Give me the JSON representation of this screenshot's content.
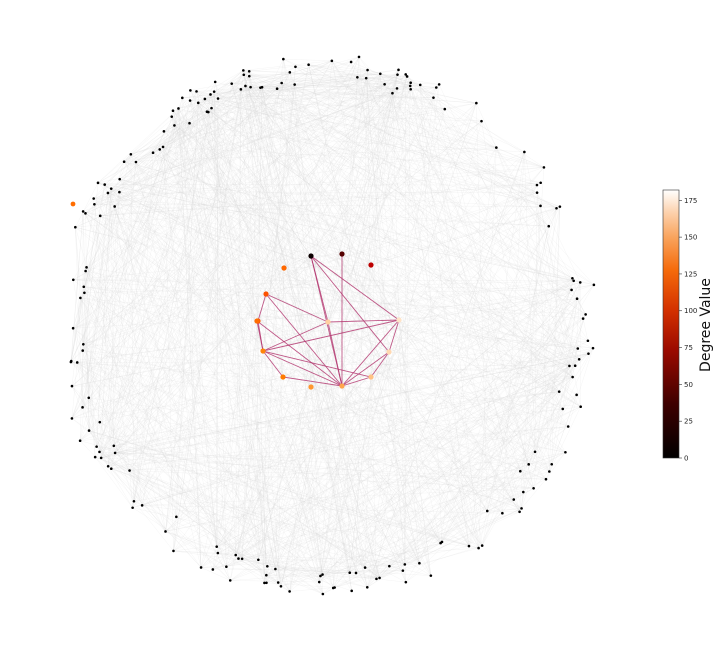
{
  "colorbar": {
    "label": "Degree Value",
    "min": 0,
    "max": 182,
    "ticks": [
      "0",
      "25",
      "50",
      "75",
      "100",
      "125",
      "150",
      "175"
    ],
    "tick_values": [
      0,
      25,
      50,
      75,
      100,
      125,
      150,
      175
    ],
    "colormap": "gist_heat"
  },
  "colors": {
    "background_edge": "#d8d8d8",
    "highlight_edge": "#b0306a",
    "outer_node": "#000000"
  },
  "graph": {
    "outer_node_count": 200,
    "background_edge_count": 1300,
    "inner_nodes": [
      {
        "id": "n1",
        "degree": 90
      },
      {
        "id": "n2",
        "degree": 40
      },
      {
        "id": "n3",
        "degree": 5
      },
      {
        "id": "n4",
        "degree": 128
      },
      {
        "id": "n5",
        "degree": 120
      },
      {
        "id": "n6",
        "degree": 122
      },
      {
        "id": "n7",
        "degree": 165
      },
      {
        "id": "n8",
        "degree": 172
      },
      {
        "id": "n9",
        "degree": 168
      },
      {
        "id": "n10",
        "degree": 160
      },
      {
        "id": "n11",
        "degree": 150
      },
      {
        "id": "n12",
        "degree": 145
      },
      {
        "id": "n13",
        "degree": 135
      },
      {
        "id": "n14",
        "degree": 138
      },
      {
        "id": "n15",
        "degree": 130
      }
    ],
    "highlight_edges": [
      [
        "n2",
        "n11"
      ],
      [
        "n3",
        "n7"
      ],
      [
        "n3",
        "n9"
      ],
      [
        "n3",
        "n11"
      ],
      [
        "n3",
        "n8"
      ],
      [
        "n5",
        "n7"
      ],
      [
        "n5",
        "n11"
      ],
      [
        "n5",
        "n6"
      ],
      [
        "n6",
        "n14"
      ],
      [
        "n14",
        "n7"
      ],
      [
        "n14",
        "n8"
      ],
      [
        "n14",
        "n11"
      ],
      [
        "n14",
        "n15"
      ],
      [
        "n14",
        "n13"
      ],
      [
        "n14",
        "n10"
      ],
      [
        "n13",
        "n11"
      ],
      [
        "n15",
        "n11"
      ],
      [
        "n10",
        "n11"
      ],
      [
        "n9",
        "n11"
      ],
      [
        "n7",
        "n8"
      ],
      [
        "n8",
        "n9"
      ],
      [
        "n9",
        "n10"
      ],
      [
        "n7",
        "n11"
      ],
      [
        "n8",
        "n11"
      ]
    ]
  }
}
